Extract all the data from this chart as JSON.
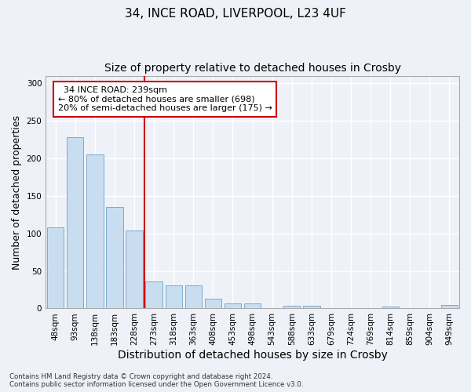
{
  "title_line1": "34, INCE ROAD, LIVERPOOL, L23 4UF",
  "title_line2": "Size of property relative to detached houses in Crosby",
  "xlabel": "Distribution of detached houses by size in Crosby",
  "ylabel": "Number of detached properties",
  "categories": [
    "48sqm",
    "93sqm",
    "138sqm",
    "183sqm",
    "228sqm",
    "273sqm",
    "318sqm",
    "363sqm",
    "408sqm",
    "453sqm",
    "498sqm",
    "543sqm",
    "588sqm",
    "633sqm",
    "679sqm",
    "724sqm",
    "769sqm",
    "814sqm",
    "859sqm",
    "904sqm",
    "949sqm"
  ],
  "values": [
    108,
    228,
    205,
    135,
    104,
    36,
    31,
    31,
    13,
    7,
    7,
    0,
    4,
    4,
    0,
    0,
    0,
    3,
    0,
    0,
    5
  ],
  "bar_color": "#c9ddf0",
  "bar_edge_color": "#7aabcc",
  "vline_color": "#cc0000",
  "vline_x_index": 4,
  "annotation_text": "  34 INCE ROAD: 239sqm\n← 80% of detached houses are smaller (698)\n20% of semi-detached houses are larger (175) →",
  "annotation_box_color": "white",
  "annotation_box_edge_color": "#cc0000",
  "ylim": [
    0,
    310
  ],
  "yticks": [
    0,
    50,
    100,
    150,
    200,
    250,
    300
  ],
  "title_fontsize": 11,
  "subtitle_fontsize": 10,
  "axis_label_fontsize": 9,
  "tick_fontsize": 7.5,
  "annotation_fontsize": 8,
  "footer_text": "Contains HM Land Registry data © Crown copyright and database right 2024.\nContains public sector information licensed under the Open Government Licence v3.0.",
  "background_color": "#eef2f8",
  "plot_background_color": "#eef2f8",
  "grid_color": "white"
}
